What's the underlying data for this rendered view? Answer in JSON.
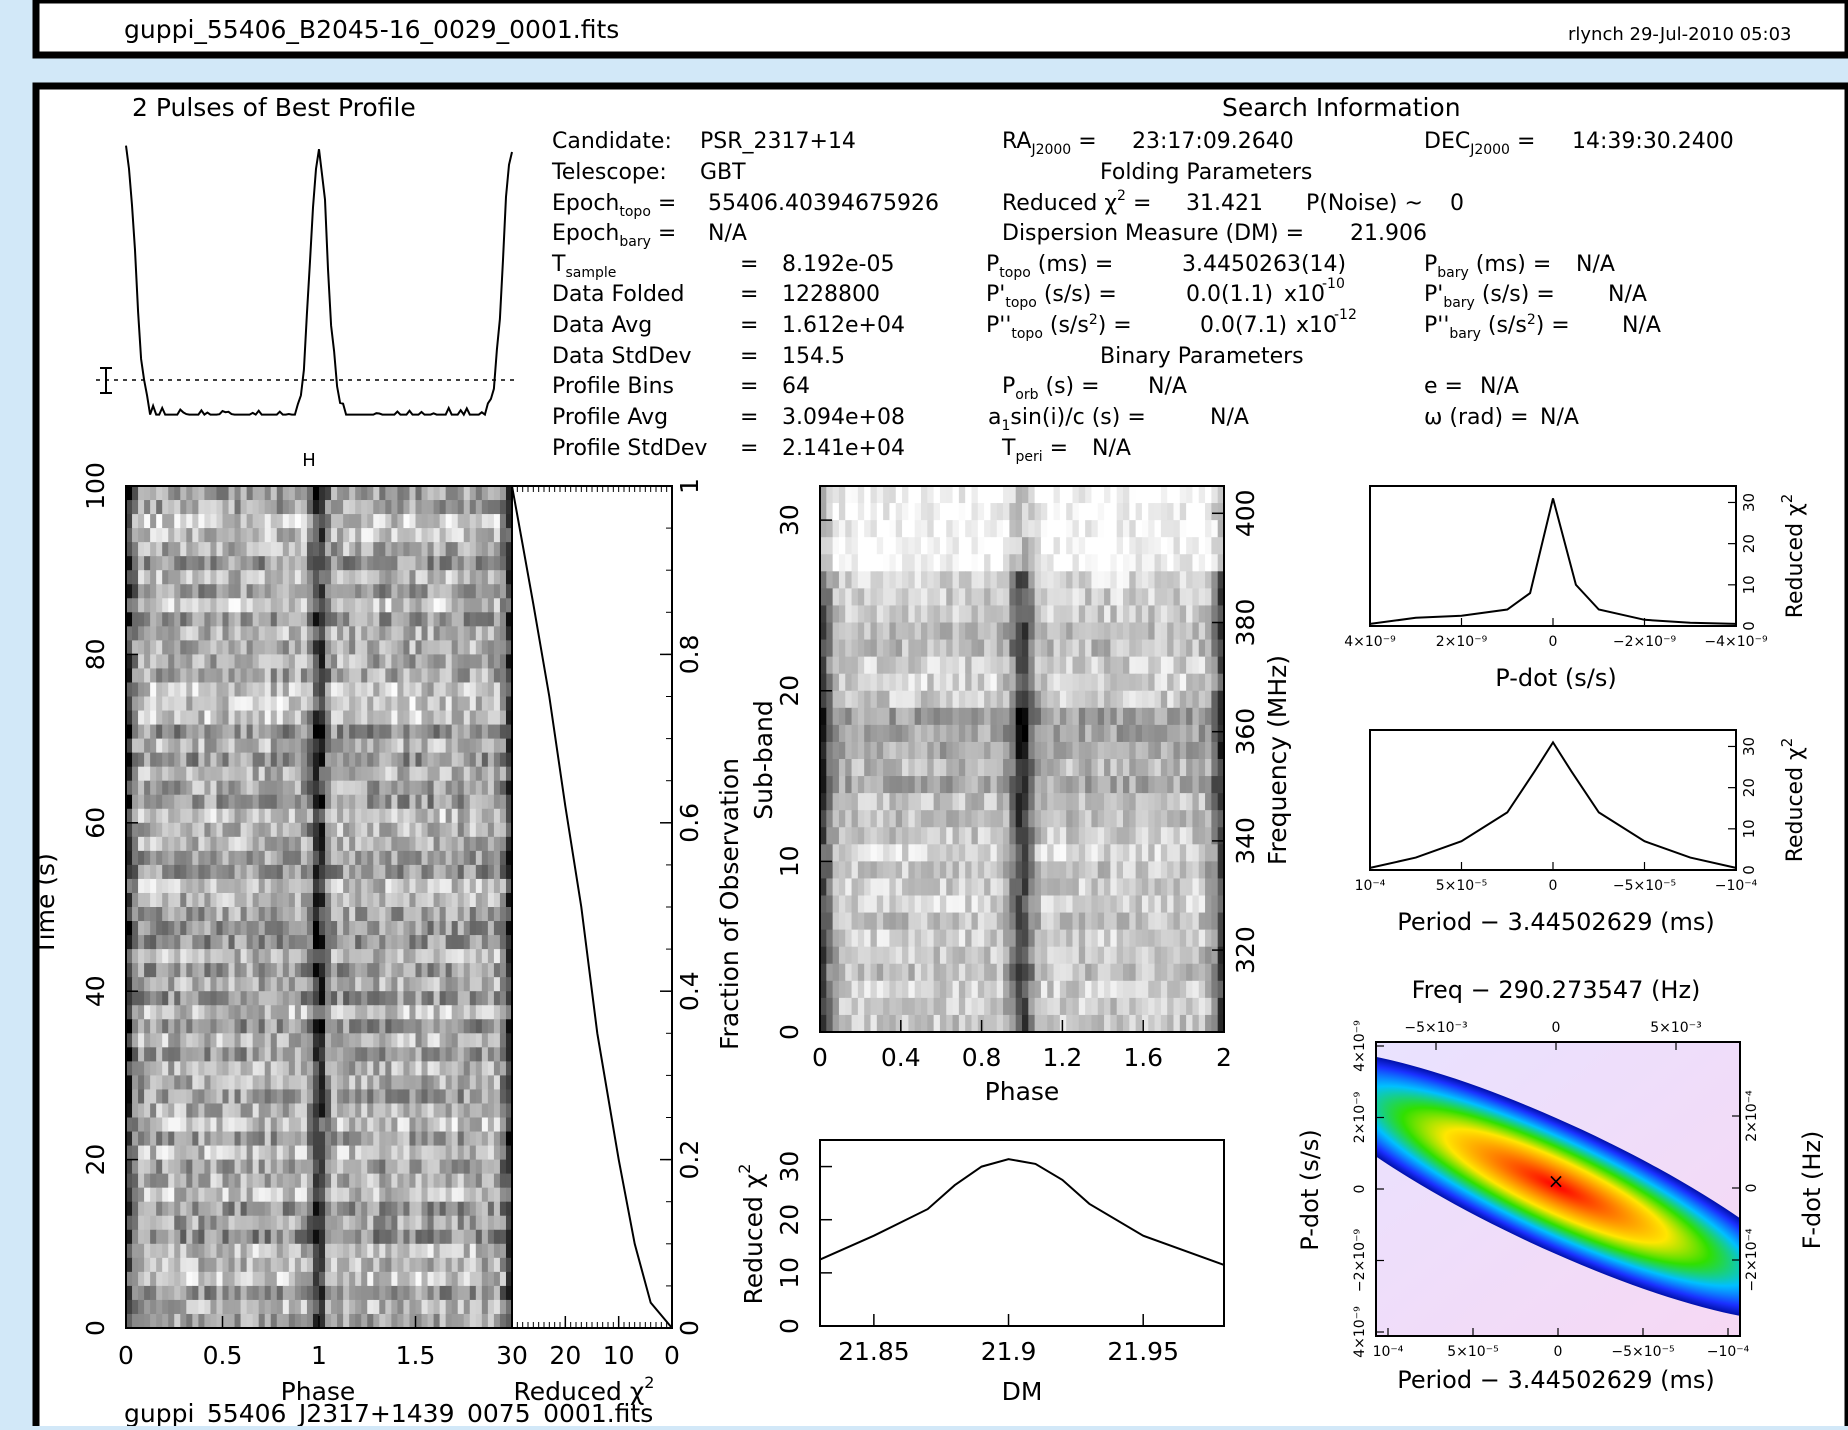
{
  "header": {
    "prev_title": "guppi_55406_B2045-16_0029_0001.fits",
    "prev_user_date": "rlynch 29-Jul-2010 05:03",
    "next_title": "guppi_55406_J2317+1439_0075_0001.fits"
  },
  "info": {
    "profile_title": "2 Pulses of Best Profile",
    "search_title": "Search Information",
    "folding_title": "Folding Parameters",
    "binary_title": "Binary Parameters",
    "candidate": "PSR_2317+14",
    "telescope": "GBT",
    "epoch_topo": "55406.40394675926",
    "epoch_bary": "N/A",
    "t_sample": "8.192e-05",
    "data_folded": "1228800",
    "data_avg": "1.612e+04",
    "data_stddev": "154.5",
    "profile_bins": "64",
    "profile_avg": "3.094e+08",
    "profile_stddev": "2.141e+04",
    "ra": "23:17:09.2640",
    "dec": "14:39:30.2400",
    "reduced_chi2": "31.421",
    "p_noise": "0",
    "dm": "21.906",
    "p_topo": "3.4450263(14)",
    "pd_topo_mant": "0.0(1.1)",
    "pd_topo_exp": "-10",
    "pdd_topo_mant": "0.0(7.1)",
    "pdd_topo_exp": "-12",
    "p_bary": "N/A",
    "pd_bary": "N/A",
    "pdd_bary": "N/A",
    "p_orb": "N/A",
    "asini": "N/A",
    "t_peri": "N/A",
    "ecc": "N/A",
    "omega": "N/A"
  },
  "labels": {
    "time_s": "Time (s)",
    "phase": "Phase",
    "reduced_chi": "Reduced χ",
    "frac_obs": "Fraction of Observation",
    "sub_band": "Sub-band",
    "freq_mhz": "Frequency (MHz)",
    "dm": "DM",
    "pdot": "P-dot (s/s)",
    "period": "Period − 3.44502629 (ms)",
    "freq_top": "Freq − 290.273547 (Hz)",
    "fdot": "F-dot (Hz)"
  },
  "chart_data": [
    {
      "type": "line",
      "name": "profile",
      "title": "2 Pulses of Best Profile",
      "x": [
        0,
        0.25,
        0.5,
        0.75,
        1,
        1.25,
        1.5,
        1.75,
        2
      ],
      "y": [
        1.0,
        0.12,
        0.05,
        0.1,
        1.0,
        0.1,
        0.05,
        0.12,
        1.0
      ],
      "notes": "two pulse peaks at phase 0 and 1"
    },
    {
      "type": "heatmap",
      "name": "time-phase",
      "xlabel": "Phase",
      "ylabel": "Time (s)",
      "xlim": [
        0,
        2
      ],
      "ylim": [
        0,
        100
      ],
      "x_ticks": [
        "0",
        "0.5",
        "1",
        "1.5"
      ],
      "y_ticks": [
        "0",
        "20",
        "40",
        "60",
        "80",
        "100"
      ],
      "peak_phase": 1.0
    },
    {
      "type": "line",
      "name": "chi-vs-time",
      "xlabel": "Reduced χ2",
      "ylabel": "Fraction of Observation",
      "xlim": [
        30,
        0
      ],
      "ylim": [
        0,
        1
      ],
      "x": [
        0,
        4,
        7,
        10,
        14,
        17,
        20,
        23,
        26,
        28,
        30
      ],
      "y": [
        0,
        0.03,
        0.1,
        0.2,
        0.35,
        0.5,
        0.62,
        0.75,
        0.86,
        0.93,
        1.0
      ],
      "x_ticks": [
        "30",
        "20",
        "10",
        "0"
      ],
      "y_ticks": [
        "0",
        "0.2",
        "0.4",
        "0.6",
        "0.8",
        "1"
      ]
    },
    {
      "type": "heatmap",
      "name": "subband-phase",
      "xlabel": "Phase",
      "ylabel": "Sub-band",
      "y2label": "Frequency (MHz)",
      "xlim": [
        0,
        2
      ],
      "ylim": [
        0,
        32
      ],
      "x_ticks": [
        "0",
        "0.4",
        "0.8",
        "1.2",
        "1.6",
        "2"
      ],
      "y_ticks": [
        "0",
        "10",
        "20",
        "30"
      ],
      "y2_ticks": [
        "320",
        "340",
        "360",
        "380",
        "400"
      ],
      "peak_phase": 1.0
    },
    {
      "type": "line",
      "name": "dm-curve",
      "xlabel": "DM",
      "ylabel": "Reduced χ2",
      "xlim": [
        21.83,
        21.98
      ],
      "ylim": [
        0,
        35
      ],
      "x": [
        21.83,
        21.85,
        21.87,
        21.88,
        21.89,
        21.9,
        21.91,
        21.92,
        21.93,
        21.95,
        21.98
      ],
      "y": [
        12.5,
        17,
        22,
        26.5,
        30,
        31.4,
        30.5,
        27.5,
        23,
        17,
        11.5
      ],
      "x_ticks": [
        "21.85",
        "21.9",
        "21.95"
      ],
      "y_ticks": [
        "0",
        "10",
        "20",
        "30"
      ]
    },
    {
      "type": "line",
      "name": "pdot-curve",
      "xlabel": "P-dot (s/s)",
      "ylabel": "Reduced χ2",
      "x": [
        4e-09,
        3e-09,
        2e-09,
        1e-09,
        5e-10,
        0,
        -5e-10,
        -1e-09,
        -2e-09,
        -3e-09,
        -4e-09
      ],
      "y": [
        0.5,
        2,
        2.5,
        4,
        8,
        31,
        10,
        4,
        1.5,
        0.8,
        0.5
      ],
      "x_ticks": [
        "4×10⁻⁹",
        "2×10⁻⁹",
        "0",
        "−2×10⁻⁹",
        "−4×10⁻⁹"
      ],
      "y_ticks": [
        "0",
        "10",
        "20",
        "30"
      ]
    },
    {
      "type": "line",
      "name": "period-curve",
      "xlabel": "Period − 3.44502629 (ms)",
      "ylabel": "Reduced χ2",
      "x": [
        0.0001,
        7.5e-05,
        5e-05,
        2.5e-05,
        1e-05,
        0,
        -1e-05,
        -2.5e-05,
        -5e-05,
        -7.5e-05,
        -0.0001
      ],
      "y": [
        0.5,
        3,
        7,
        14,
        24,
        31,
        24,
        14,
        7,
        3,
        0.5
      ],
      "x_ticks": [
        "10⁻⁴",
        "5×10⁻⁵",
        "0",
        "−5×10⁻⁵",
        "−10⁻⁴"
      ],
      "y_ticks": [
        "0",
        "10",
        "20",
        "30"
      ]
    },
    {
      "type": "heatmap",
      "name": "p-pdot-plane",
      "xlabel": "Period − 3.44502629 (ms)",
      "ylabel": "P-dot (s/s)",
      "x2label": "Freq − 290.273547 (Hz)",
      "y2label": "F-dot (Hz)",
      "x_ticks": [
        "10⁻⁴",
        "5×10⁻⁵",
        "0",
        "−5×10⁻⁵",
        "−10⁻⁴"
      ],
      "x2_ticks": [
        "−5×10⁻³",
        "0",
        "5×10⁻³"
      ],
      "y_ticks": [
        "4×10⁻⁹",
        "−2×10⁻⁹",
        "0",
        "2×10⁻⁹",
        "4×10⁻⁹"
      ],
      "y2_ticks": [
        "−2×10⁻⁴",
        "0",
        "2×10⁻⁴"
      ],
      "best": [
        0,
        0
      ]
    }
  ]
}
